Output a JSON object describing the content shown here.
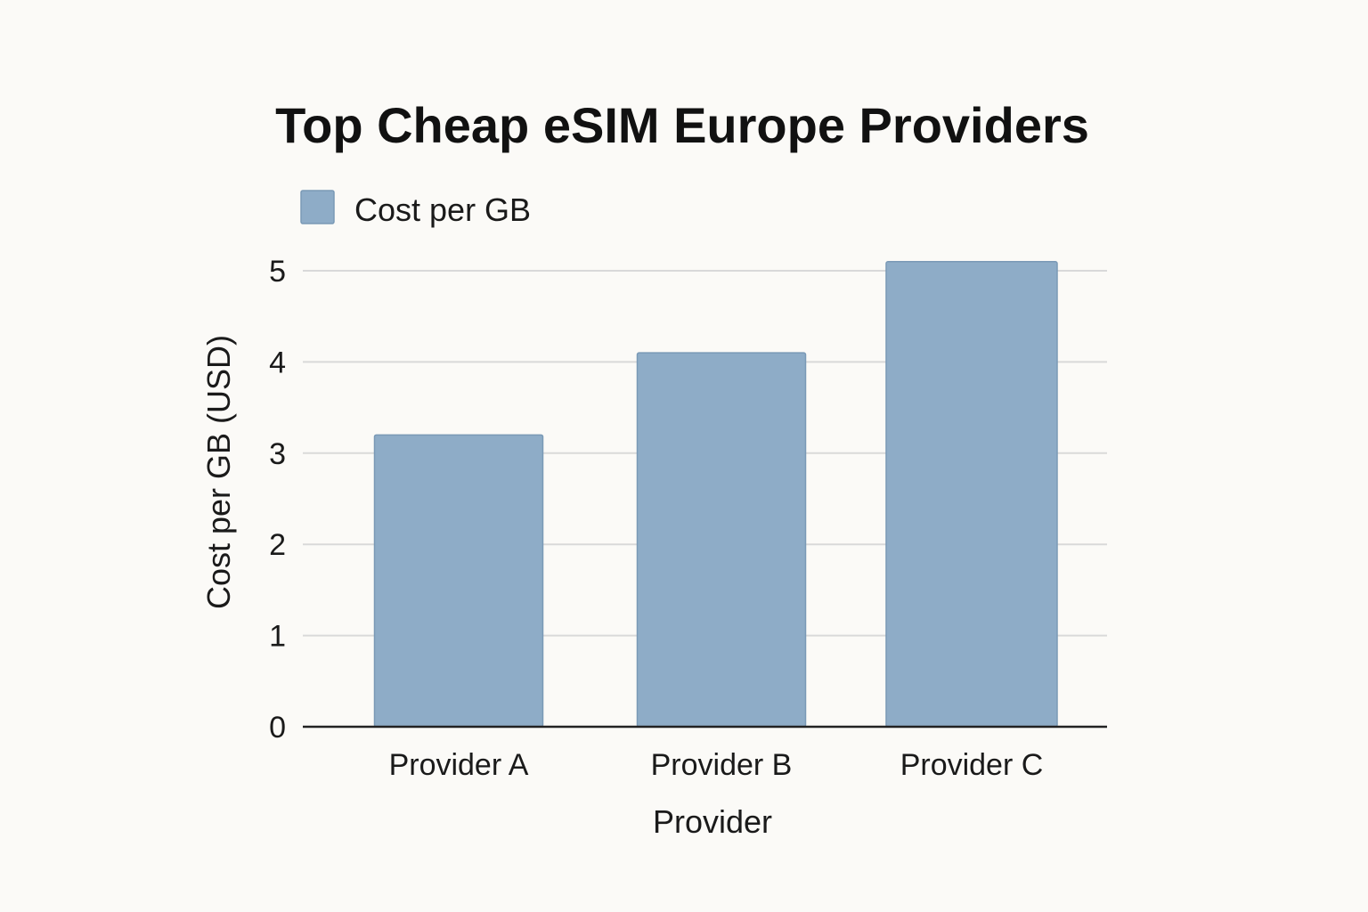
{
  "chart_data": {
    "type": "bar",
    "title": "Top Cheap eSIM Europe Providers",
    "xlabel": "Provider",
    "ylabel": "Cost per GB (USD)",
    "categories": [
      "Provider A",
      "Provider B",
      "Provider C"
    ],
    "series": [
      {
        "name": "Cost per GB",
        "values": [
          3.2,
          4.1,
          5.1
        ]
      }
    ],
    "ylim": [
      0,
      5
    ],
    "yticks": [
      0,
      1,
      2,
      3,
      4,
      5
    ],
    "grid": true,
    "legend_position": "top-left",
    "colors": {
      "bar": "#8eacc7",
      "bar_edge": "#7a99b6"
    }
  }
}
